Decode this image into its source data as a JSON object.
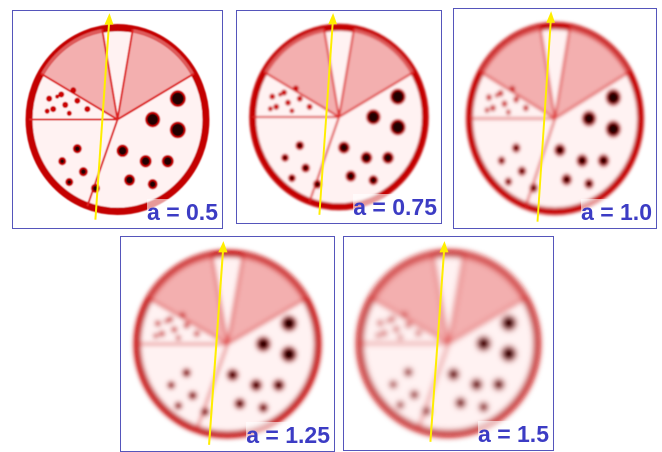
{
  "panels": [
    {
      "label": "a = 0.5"
    },
    {
      "label": "a = 0.75"
    },
    {
      "label": "a = 1.0"
    },
    {
      "label": "a = 1.25"
    },
    {
      "label": "a = 1.5"
    }
  ]
}
